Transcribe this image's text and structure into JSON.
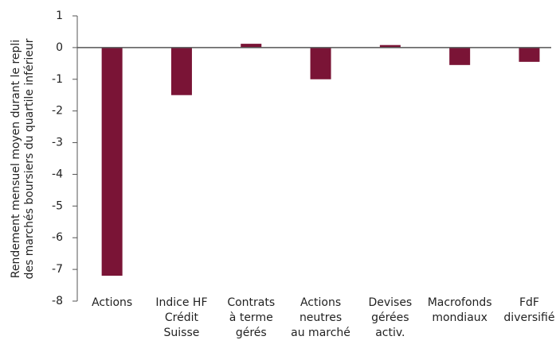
{
  "chart_data": {
    "type": "bar",
    "ylabel": [
      "Rendement mensuel moyen durant le repli",
      "des marchés boursiers du quartile inférieur"
    ],
    "categories": [
      [
        "Actions"
      ],
      [
        "Indice HF",
        "Crédit",
        "Suisse"
      ],
      [
        "Contrats",
        "à terme",
        "gérés"
      ],
      [
        "Actions",
        "neutres",
        "au marché"
      ],
      [
        "Devises",
        "gérées",
        "activ."
      ],
      [
        "Macrofonds",
        "mondiaux"
      ],
      [
        "FdF",
        "diversifié"
      ]
    ],
    "values": [
      -7.2,
      -1.5,
      0.12,
      -1.0,
      0.08,
      -0.55,
      -0.45
    ],
    "color": "#7a1436",
    "ylim": [
      -8,
      1
    ],
    "yticks": [
      -8,
      -7,
      -6,
      -5,
      -4,
      -3,
      -2,
      -1,
      0,
      1
    ]
  }
}
